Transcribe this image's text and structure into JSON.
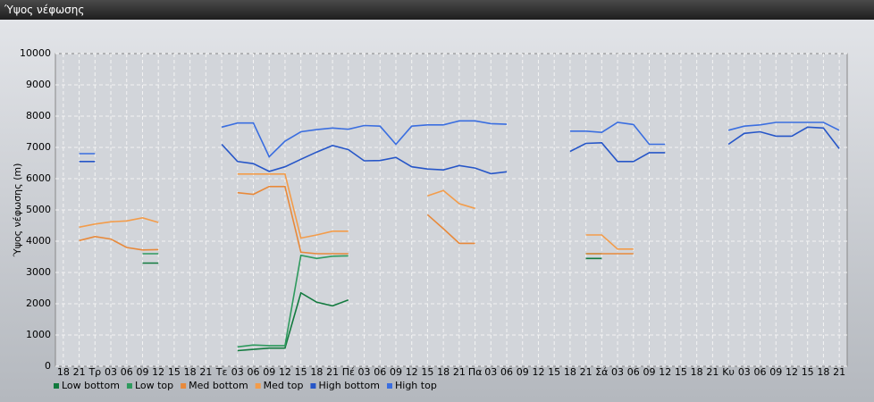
{
  "chart_data": {
    "type": "line",
    "title": "Ύψος νέφωσης",
    "y_label": "Ύψος νέφωσης (m)",
    "categories": [
      "18",
      "21",
      "Τρ",
      "03",
      "06",
      "09",
      "12",
      "15",
      "18",
      "21",
      "Τε",
      "03",
      "06",
      "09",
      "12",
      "15",
      "18",
      "21",
      "Πέ",
      "03",
      "06",
      "09",
      "12",
      "15",
      "18",
      "21",
      "Πα",
      "03",
      "06",
      "09",
      "12",
      "15",
      "18",
      "21",
      "Σά",
      "03",
      "06",
      "09",
      "12",
      "15",
      "18",
      "21",
      "Κυ",
      "03",
      "06",
      "09",
      "12",
      "15",
      "18",
      "21"
    ],
    "ylim": [
      0,
      10000
    ],
    "yticks": [
      0,
      1000,
      2000,
      3000,
      4000,
      5000,
      6000,
      7000,
      8000,
      9000,
      10000
    ],
    "grid": true,
    "series": [
      {
        "name": "Low bottom",
        "color": "#127a3e",
        "values": [
          null,
          null,
          null,
          null,
          null,
          3300,
          3300,
          null,
          null,
          null,
          null,
          500,
          540,
          580,
          580,
          2350,
          2050,
          1930,
          2120,
          null,
          null,
          null,
          null,
          null,
          null,
          null,
          null,
          null,
          null,
          null,
          null,
          null,
          null,
          3450,
          3450,
          null,
          null,
          null,
          null,
          null,
          null,
          null,
          null,
          null,
          null,
          null,
          null,
          null,
          null,
          null
        ]
      },
      {
        "name": "Low top",
        "color": "#2e9a5e",
        "values": [
          null,
          null,
          null,
          null,
          null,
          3600,
          3600,
          null,
          null,
          null,
          null,
          620,
          680,
          660,
          660,
          3550,
          3450,
          3520,
          3530,
          null,
          null,
          null,
          null,
          null,
          null,
          null,
          null,
          null,
          null,
          null,
          null,
          null,
          null,
          3600,
          3600,
          null,
          null,
          null,
          null,
          null,
          null,
          null,
          null,
          null,
          null,
          null,
          null,
          null,
          null,
          null
        ]
      },
      {
        "name": "Med bottom",
        "color": "#e8893a",
        "values": [
          null,
          4020,
          4150,
          4070,
          3800,
          3720,
          3730,
          null,
          null,
          null,
          null,
          5550,
          5500,
          5750,
          5750,
          3650,
          3600,
          3600,
          3600,
          null,
          null,
          null,
          null,
          4850,
          4400,
          3930,
          3930,
          null,
          null,
          null,
          null,
          null,
          null,
          3600,
          3600,
          3600,
          3600,
          null,
          null,
          null,
          null,
          null,
          null,
          null,
          null,
          null,
          null,
          null,
          null,
          null
        ]
      },
      {
        "name": "Med top",
        "color": "#f39c4a",
        "values": [
          null,
          4450,
          4550,
          4620,
          4650,
          4750,
          4600,
          null,
          null,
          null,
          null,
          6150,
          6150,
          6150,
          6150,
          4100,
          4200,
          4320,
          4320,
          null,
          null,
          null,
          null,
          5450,
          5620,
          5200,
          5050,
          null,
          null,
          null,
          null,
          null,
          null,
          4200,
          4200,
          3750,
          3750,
          null,
          null,
          null,
          null,
          null,
          null,
          null,
          null,
          null,
          null,
          null,
          null,
          null
        ]
      },
      {
        "name": "High bottom",
        "color": "#2656c8",
        "values": [
          null,
          6550,
          6550,
          null,
          null,
          null,
          null,
          null,
          null,
          null,
          7100,
          6550,
          6480,
          6230,
          6380,
          6620,
          6850,
          7060,
          6930,
          6570,
          6580,
          6680,
          6380,
          6310,
          6280,
          6420,
          6340,
          6160,
          6220,
          null,
          null,
          null,
          6870,
          7130,
          7150,
          6550,
          6550,
          6830,
          6830,
          null,
          null,
          null,
          7100,
          7450,
          7500,
          7360,
          7360,
          7650,
          7620,
          6960
        ]
      },
      {
        "name": "High top",
        "color": "#3a6ee0",
        "values": [
          null,
          6800,
          6800,
          null,
          null,
          null,
          null,
          null,
          null,
          null,
          7650,
          7780,
          7780,
          6700,
          7200,
          7500,
          7570,
          7620,
          7580,
          7700,
          7680,
          7100,
          7680,
          7720,
          7720,
          7850,
          7850,
          7760,
          7740,
          null,
          null,
          null,
          7520,
          7520,
          7480,
          7800,
          7730,
          7100,
          7100,
          null,
          null,
          null,
          7550,
          7680,
          7720,
          7800,
          7800,
          7800,
          7800,
          7550
        ]
      }
    ]
  }
}
